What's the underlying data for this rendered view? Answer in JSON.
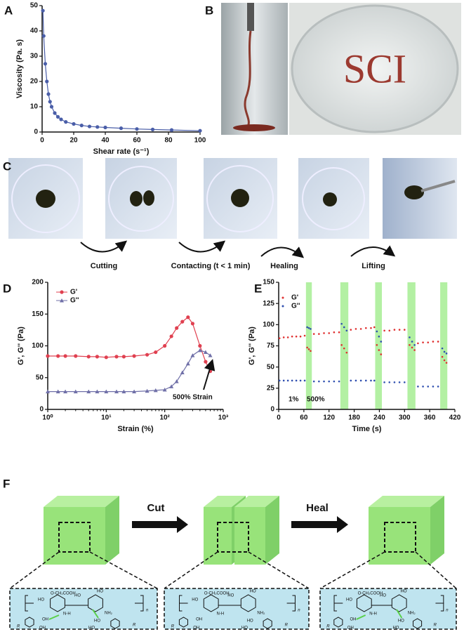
{
  "panel_labels": [
    "A",
    "B",
    "C",
    "D",
    "E",
    "F"
  ],
  "chart_data": [
    {
      "type": "line",
      "xlabel": "Shear rate (s⁻¹)",
      "ylabel": "Viscosity (Pa. s)",
      "x": [
        0.5,
        1,
        2,
        3,
        4,
        5,
        6,
        8,
        10,
        12,
        15,
        20,
        25,
        30,
        35,
        40,
        50,
        60,
        70,
        82,
        100
      ],
      "values": [
        48,
        38,
        27,
        20,
        15,
        12,
        10,
        7.5,
        6,
        5,
        4,
        3.2,
        2.6,
        2.2,
        2,
        1.8,
        1.5,
        1.2,
        1,
        0.8,
        0.5
      ],
      "color": "#4a5ea8",
      "xlim": [
        0,
        100
      ],
      "ylim": [
        0,
        50
      ],
      "xticks": [
        0,
        20,
        40,
        60,
        80,
        100
      ],
      "yticks": [
        0,
        10,
        20,
        30,
        40,
        50
      ]
    },
    {
      "type": "line",
      "xscale": "log",
      "xlabel": "Strain (%)",
      "ylabel": "G', G'' (Pa)",
      "x": [
        1,
        1.5,
        2,
        3,
        5,
        7,
        10,
        15,
        20,
        30,
        50,
        70,
        100,
        130,
        160,
        200,
        250,
        300,
        400,
        500,
        600
      ],
      "series": [
        {
          "name": "G'",
          "color": "#e04050",
          "marker": "circle",
          "values": [
            84,
            84,
            84,
            84,
            83,
            83,
            82,
            83,
            83,
            84,
            86,
            90,
            100,
            115,
            128,
            138,
            145,
            135,
            100,
            75,
            60
          ]
        },
        {
          "name": "G''",
          "color": "#7070a8",
          "marker": "triangle",
          "values": [
            28,
            28,
            28,
            28,
            28,
            28,
            28,
            28,
            28,
            28,
            29,
            30,
            31,
            36,
            44,
            58,
            72,
            85,
            93,
            90,
            85
          ]
        }
      ],
      "annotation": "500% Strain",
      "legend": "upper left",
      "xlim": [
        1,
        1000
      ],
      "ylim": [
        0,
        200
      ],
      "xticks": [
        {
          "value": 1,
          "label": "10⁰"
        },
        {
          "value": 10,
          "label": "10¹"
        },
        {
          "value": 100,
          "label": "10²"
        },
        {
          "value": 1000,
          "label": "10³"
        }
      ],
      "yticks": [
        0,
        50,
        100,
        150,
        200
      ]
    },
    {
      "type": "scatter",
      "xlabel": "Time (s)",
      "ylabel": "G', G'' (Pa)",
      "x": [
        2,
        12,
        22,
        32,
        42,
        52,
        62,
        68,
        72,
        76,
        84,
        96,
        108,
        120,
        132,
        144,
        150,
        156,
        162,
        172,
        184,
        196,
        208,
        220,
        228,
        234,
        239,
        244,
        252,
        264,
        276,
        288,
        300,
        312,
        318,
        324,
        332,
        344,
        356,
        368,
        380,
        390,
        395,
        400
      ],
      "series": [
        {
          "name": "G'",
          "color": "#e03030",
          "values": [
            84,
            85,
            85,
            86,
            86,
            86,
            87,
            73,
            71,
            69,
            89,
            89,
            90,
            90,
            91,
            91,
            76,
            72,
            67,
            94,
            95,
            95,
            96,
            96,
            97,
            76,
            70,
            65,
            93,
            93,
            94,
            94,
            94,
            76,
            73,
            70,
            78,
            79,
            79,
            80,
            80,
            62,
            58,
            55
          ]
        },
        {
          "name": "G''",
          "color": "#3050b0",
          "values": [
            34,
            34,
            34,
            34,
            34,
            34,
            34,
            97,
            96,
            95,
            33,
            33,
            33,
            33,
            33,
            33,
            101,
            97,
            93,
            34,
            34,
            34,
            34,
            34,
            34,
            92,
            86,
            80,
            32,
            32,
            32,
            32,
            32,
            85,
            80,
            76,
            27,
            27,
            27,
            27,
            27,
            72,
            68,
            66
          ]
        }
      ],
      "bands": [
        [
          65,
          79
        ],
        [
          147,
          166
        ],
        [
          230,
          246
        ],
        [
          307,
          326
        ],
        [
          385,
          402
        ]
      ],
      "band_color": "#b3f0a3",
      "annotations": [
        "1%",
        "500%"
      ],
      "legend": "upper left",
      "xlim": [
        0,
        420
      ],
      "ylim": [
        0,
        150
      ],
      "xticks": [
        0,
        60,
        120,
        180,
        240,
        300,
        360,
        420
      ],
      "yticks": [
        0,
        25,
        50,
        75,
        100,
        125,
        150
      ]
    }
  ],
  "photos": {
    "written_text": "SCI"
  },
  "steps": [
    "Cutting",
    "Contacting (t < 1 min)",
    "Healing",
    "Lifting"
  ],
  "diagram": {
    "arrows": [
      "Cut",
      "Heal"
    ],
    "structure_labels": [
      "O-CH₂COOH",
      "HO",
      "HO",
      "HO",
      "NH₂",
      "N-H",
      "n",
      "R",
      "OH",
      "OH",
      "HO",
      "HO",
      "R"
    ]
  }
}
